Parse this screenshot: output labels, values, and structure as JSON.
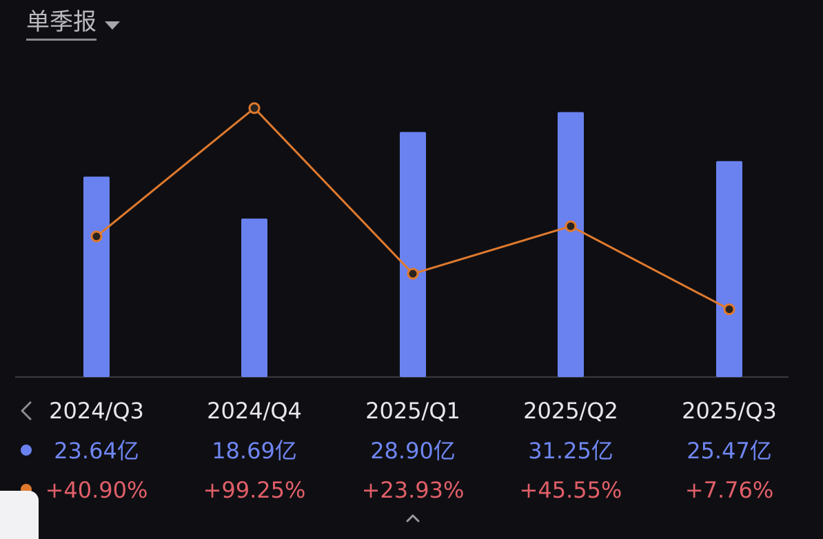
{
  "header": {
    "period_label": "单季报",
    "dropdown_icon": "caret-down-icon"
  },
  "nav": {
    "prev_icon": "chevron-left-icon",
    "scroll_hint_icon": "chevron-up-icon"
  },
  "colors": {
    "bar": "#6a82f0",
    "line": "#e07a2e",
    "value_text": "#6f86f2",
    "pct_text": "#e15f69",
    "background": "#0f0f13"
  },
  "chart_data": {
    "type": "bar",
    "categories": [
      "2024/Q3",
      "2024/Q4",
      "2025/Q1",
      "2025/Q2",
      "2025/Q3"
    ],
    "series": [
      {
        "type": "bar",
        "values": [
          23.64,
          18.69,
          28.9,
          31.25,
          25.47
        ],
        "unit": "亿",
        "labels": [
          "23.64亿",
          "18.69亿",
          "28.90亿",
          "31.25亿",
          "25.47亿"
        ]
      },
      {
        "type": "line",
        "values": [
          40.9,
          99.25,
          23.93,
          45.55,
          7.76
        ],
        "unit": "%",
        "labels": [
          "+40.90%",
          "+99.25%",
          "+23.93%",
          "+45.55%",
          "+7.76%"
        ]
      }
    ],
    "grid": false,
    "legend": "left"
  }
}
